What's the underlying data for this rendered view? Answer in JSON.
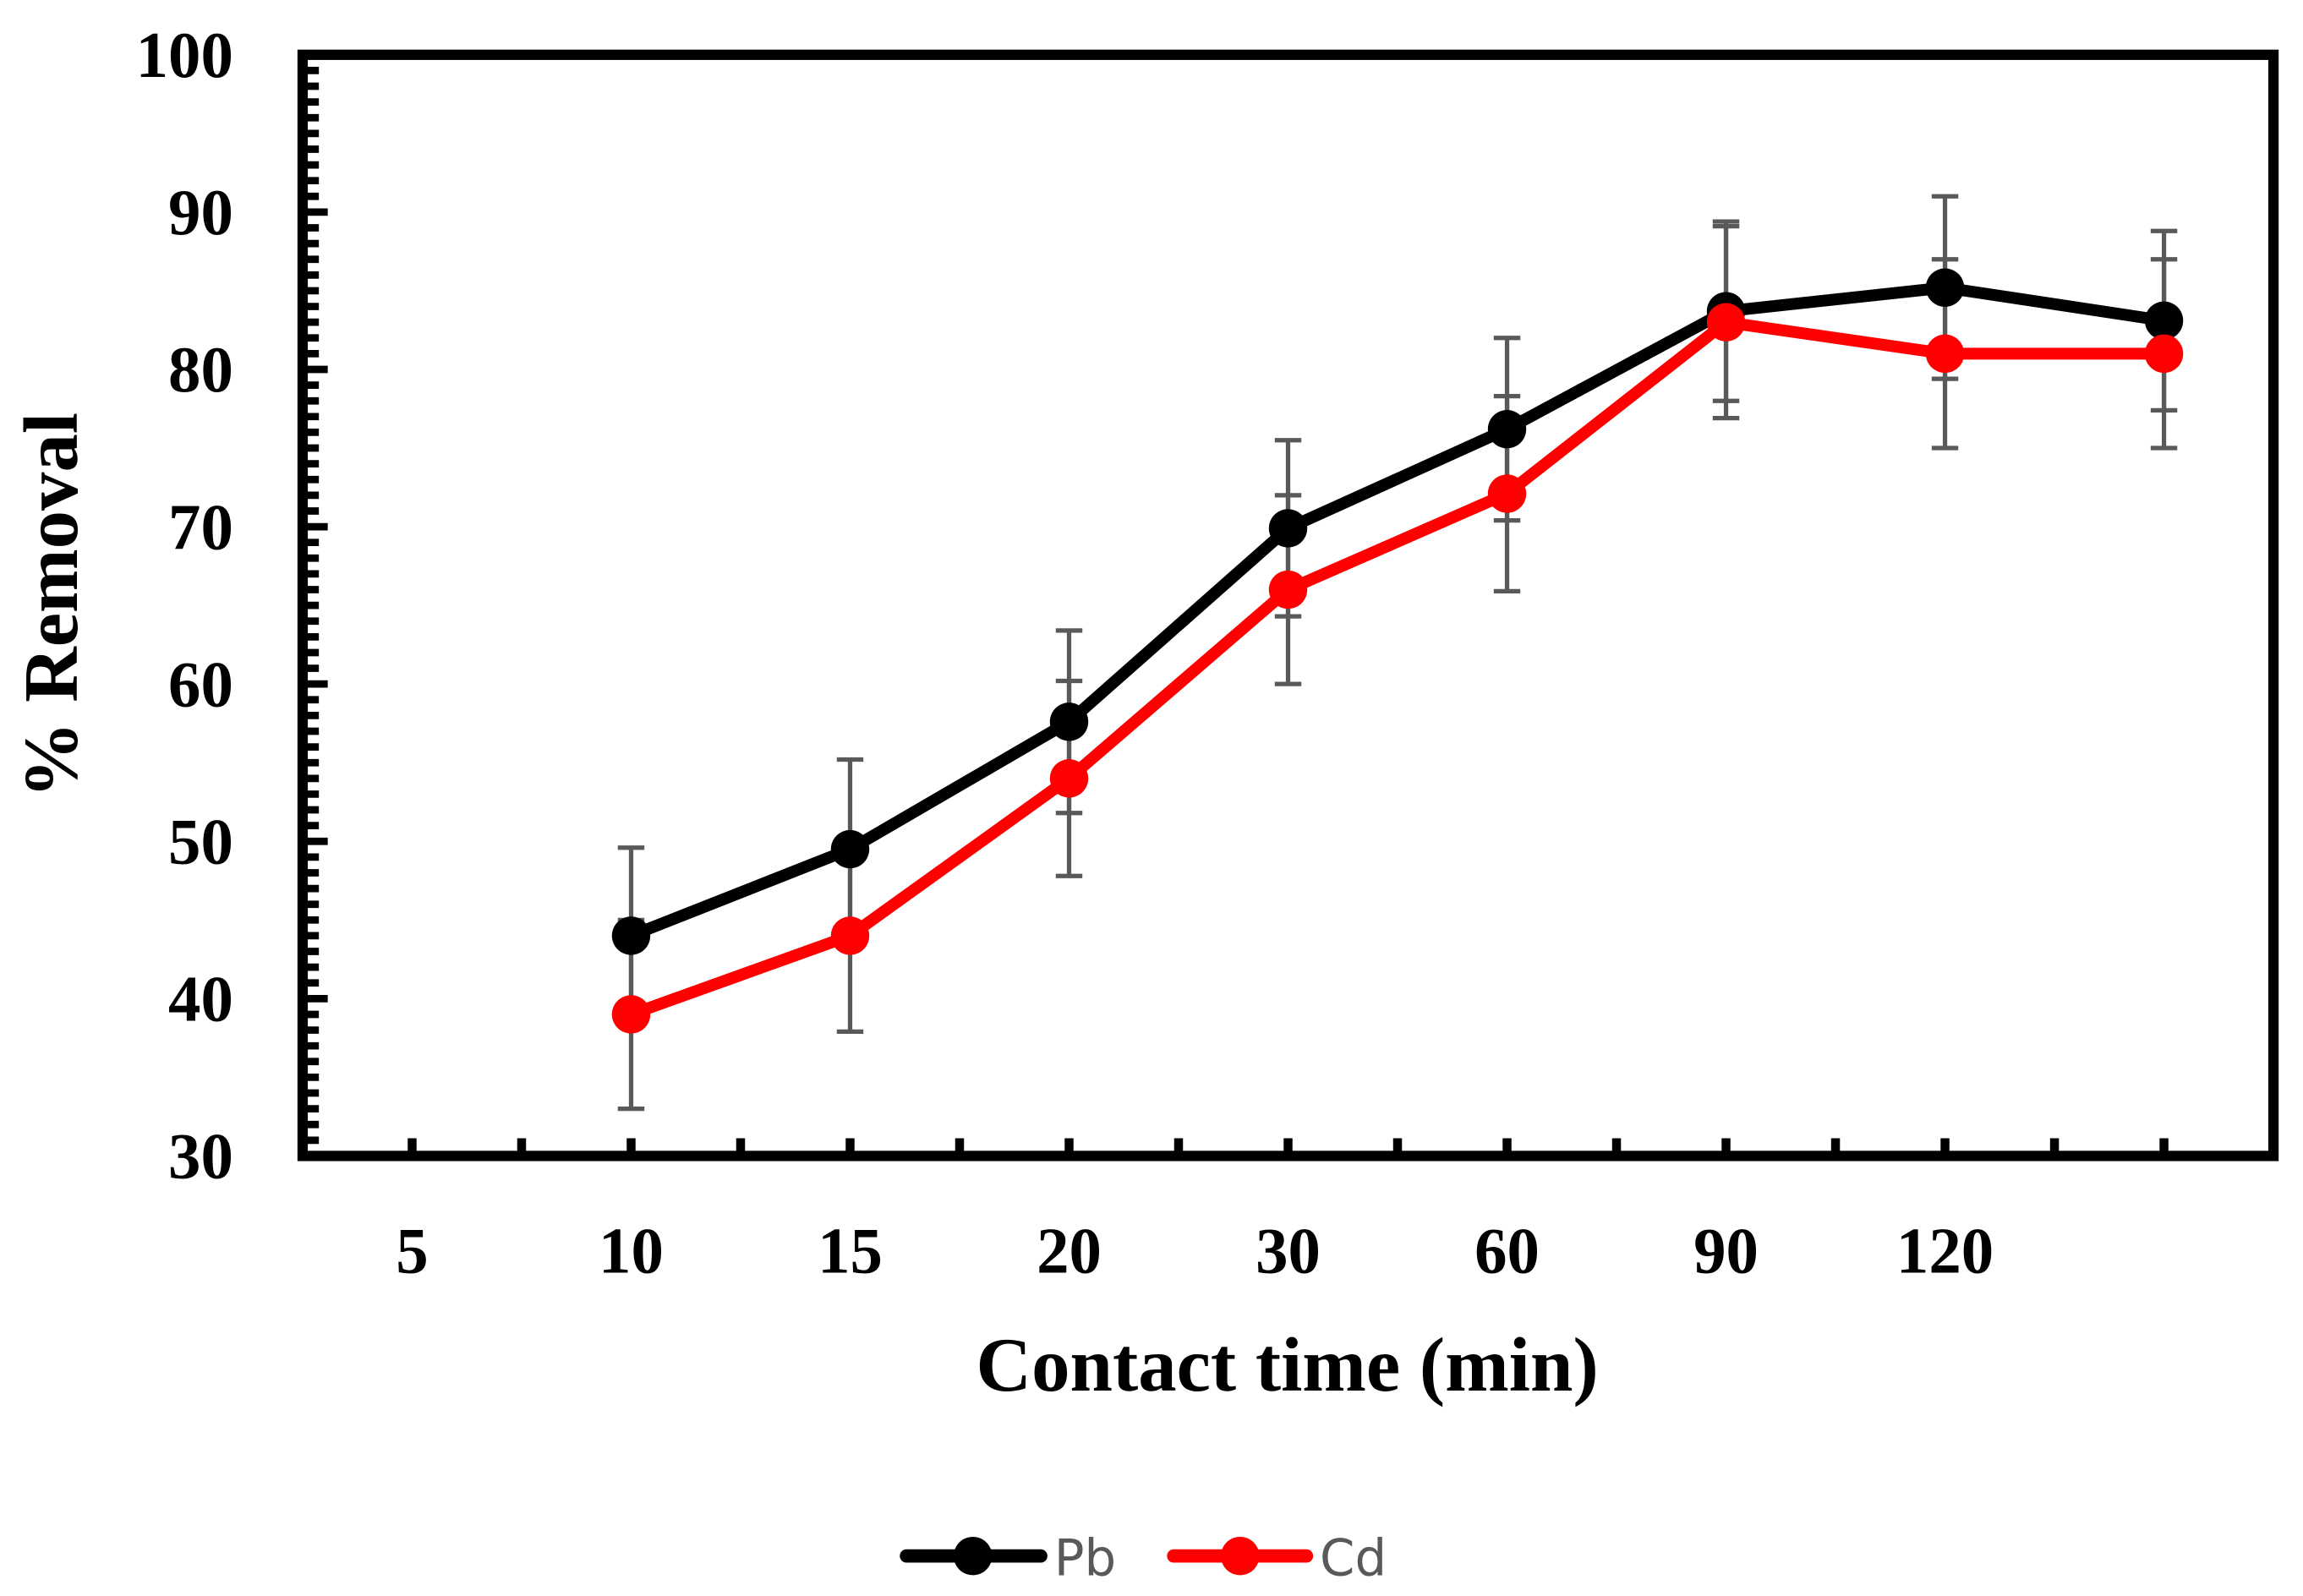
{
  "chart_data": {
    "type": "line",
    "title": "",
    "xlabel": "Contact time (min)",
    "ylabel": "% Removal",
    "categories": [
      "5",
      "10",
      "15",
      "20",
      "30",
      "60",
      "90",
      "120",
      ""
    ],
    "ylim": [
      30,
      100
    ],
    "yticks": [
      30,
      40,
      50,
      60,
      70,
      80,
      90,
      100
    ],
    "grid": false,
    "legend_position": "bottom-center",
    "series": [
      {
        "name": "Pb",
        "color": "#000000",
        "values": [
          null,
          44,
          49.5,
          57.6,
          69.9,
          76.2,
          83.7,
          85.2,
          83.1
        ],
        "errors": [
          null,
          5.6,
          5.7,
          5.8,
          5.6,
          5.8,
          5.7,
          5.8,
          5.7
        ]
      },
      {
        "name": "Cd",
        "color": "#FF0000",
        "values": [
          null,
          39,
          44,
          54,
          66,
          72.1,
          83,
          81,
          81
        ],
        "errors": [
          null,
          6,
          6.1,
          6.2,
          6,
          6.2,
          6.1,
          6,
          6
        ]
      }
    ],
    "error_bar_color": "#595959"
  }
}
